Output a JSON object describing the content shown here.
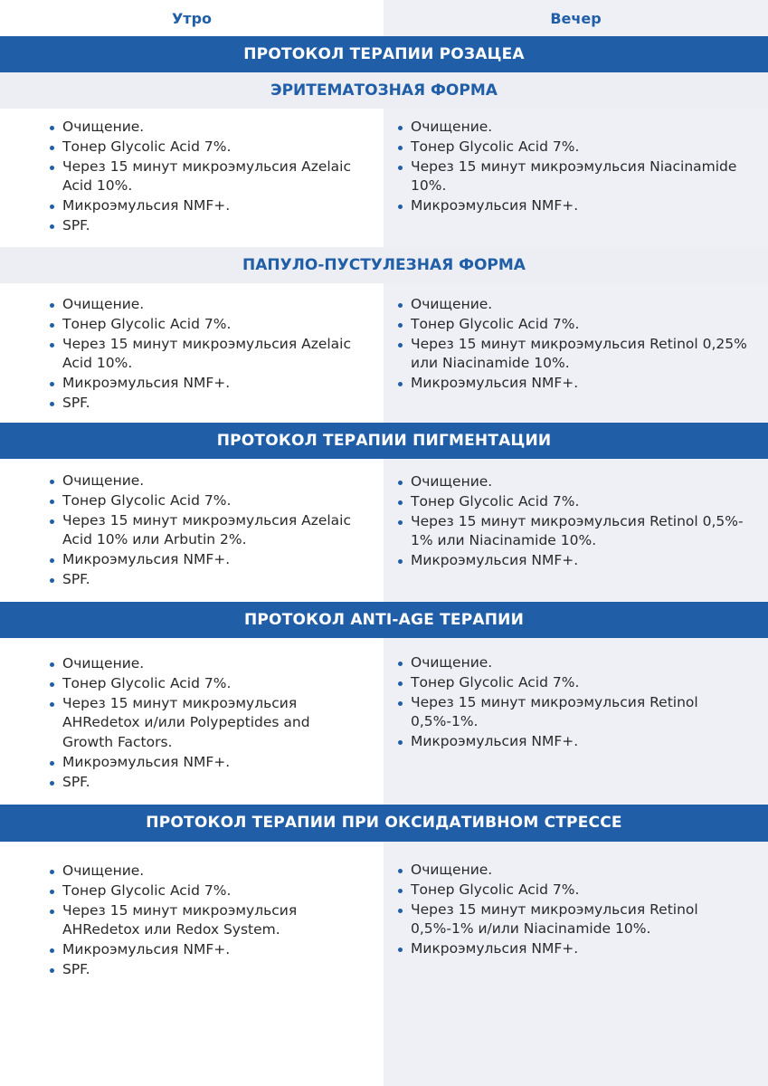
{
  "columns": {
    "morning": "Утро",
    "evening": "Вечер"
  },
  "sections": [
    {
      "band": "ПРОТОКОЛ ТЕРАПИИ РОЗАЦЕА",
      "sub": "ЭРИТЕМАТОЗНАЯ ФОРМА",
      "morning": [
        "Очищение.",
        "Тонер Glycolic Acid 7%.",
        "Через 15 минут микроэмульсия Azelaic Acid 10%.",
        "Микроэмульсия NMF+.",
        "SPF."
      ],
      "evening": [
        "Очищение.",
        "Тонер Glycolic Acid 7%.",
        "Через 15 минут микроэмульсия Niacinamide 10%.",
        "Микроэмульсия NMF+."
      ]
    },
    {
      "sub": "ПАПУЛО-ПУСТУЛЕЗНАЯ ФОРМА",
      "morning": [
        "Очищение.",
        "Тонер Glycolic Acid 7%.",
        "Через 15 минут микроэмульсия Azelaic Acid 10%.",
        "Микроэмульсия NMF+.",
        "SPF."
      ],
      "evening": [
        "Очищение.",
        "Тонер Glycolic Acid 7%.",
        "Через 15 минут микроэмульсия Retinol 0,25% или Niacinamide 10%.",
        "Микроэмульсия NMF+."
      ]
    },
    {
      "band": "ПРОТОКОЛ ТЕРАПИИ ПИГМЕНТАЦИИ",
      "morning": [
        "Очищение.",
        "Тонер Glycolic Acid 7%.",
        "Через 15 минут микроэмульсия Azelaic Acid 10% или Arbutin 2%.",
        "Микроэмульсия NMF+.",
        "SPF."
      ],
      "evening": [
        "Очищение.",
        "Тонер Glycolic Acid 7%.",
        "Через 15 минут микроэмульсия Retinol 0,5%- 1% или Niacinamide 10%.",
        "Микроэмульсия NMF+."
      ]
    },
    {
      "band": "ПРОТОКОЛ ANTI-AGE ТЕРАПИИ",
      "morning": [
        "Очищение.",
        "Тонер Glycolic Acid 7%.",
        "Через 15 минут микроэмульсия AHRedetox и/или Polypeptides and Growth Factors.",
        "Микроэмульсия NMF+.",
        "SPF."
      ],
      "evening": [
        "Очищение.",
        "Тонер Glycolic Acid 7%.",
        "Через 15 минут микроэмульсия Retinol 0,5%-1%.",
        "Микроэмульсия NMF+."
      ]
    },
    {
      "band": "ПРОТОКОЛ ТЕРАПИИ ПРИ ОКСИДАТИВНОМ СТРЕССЕ",
      "morning": [
        "Очищение.",
        "Тонер Glycolic Acid 7%.",
        "Через 15 минут микроэмульсия AHRedetox или Redox System.",
        "Микроэмульсия NMF+.",
        "SPF."
      ],
      "evening": [
        "Очищение.",
        "Тонер Glycolic Acid 7%.",
        "Через 15 минут микроэмульсия Retinol 0,5%-1% и/или Niacinamide 10%.",
        "Микроэмульсия NMF+."
      ]
    }
  ]
}
